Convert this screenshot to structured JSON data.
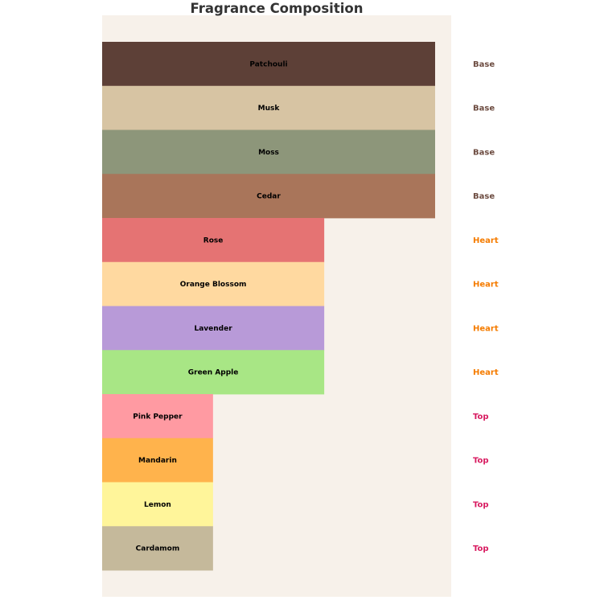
{
  "chart_data": {
    "type": "bar",
    "orientation": "horizontal",
    "title": "Fragrance Composition",
    "xlabel": "",
    "ylabel": "",
    "xlim": [
      0,
      1.05
    ],
    "grid": false,
    "axes_visible": false,
    "background_color": "#f7f1ea",
    "notes": [
      {
        "name": "Patchouli",
        "tier": "Base",
        "value": 1.0,
        "color": "#5d4037"
      },
      {
        "name": "Musk",
        "tier": "Base",
        "value": 1.0,
        "color": "#d7c4a3"
      },
      {
        "name": "Moss",
        "tier": "Base",
        "value": 1.0,
        "color": "#8d967a"
      },
      {
        "name": "Cedar",
        "tier": "Base",
        "value": 1.0,
        "color": "#a9755a"
      },
      {
        "name": "Rose",
        "tier": "Heart",
        "value": 0.667,
        "color": "#e57373"
      },
      {
        "name": "Orange Blossom",
        "tier": "Heart",
        "value": 0.667,
        "color": "#ffd9a0"
      },
      {
        "name": "Lavender",
        "tier": "Heart",
        "value": 0.667,
        "color": "#b89ad8"
      },
      {
        "name": "Green Apple",
        "tier": "Heart",
        "value": 0.667,
        "color": "#a8e685"
      },
      {
        "name": "Pink Pepper",
        "tier": "Top",
        "value": 0.333,
        "color": "#ff9aa2"
      },
      {
        "name": "Mandarin",
        "tier": "Top",
        "value": 0.333,
        "color": "#ffb34c"
      },
      {
        "name": "Lemon",
        "tier": "Top",
        "value": 0.333,
        "color": "#fff59a"
      },
      {
        "name": "Cardamom",
        "tier": "Top",
        "value": 0.333,
        "color": "#c5b99b"
      }
    ],
    "tier_colors": {
      "Base": "#6d4c41",
      "Heart": "#f57c00",
      "Top": "#d81b60"
    }
  }
}
